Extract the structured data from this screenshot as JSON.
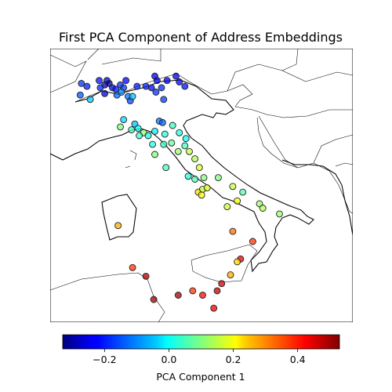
{
  "chart_data": {
    "type": "scatter-map",
    "title": "First PCA Component of Address Embeddings",
    "region": "Italy",
    "colormap": "jet",
    "colorbar": {
      "label": "PCA Component 1",
      "range": [
        -0.33,
        0.53
      ],
      "ticks": [
        -0.2,
        0.0,
        0.2,
        0.4
      ],
      "tick_labels": [
        "−0.2",
        "0.0",
        "0.2",
        "0.4"
      ],
      "orientation": "horizontal",
      "placement": "bottom"
    },
    "points": [
      {
        "x": 7.2,
        "y": 45.6,
        "v": -0.18
      },
      {
        "x": 7.45,
        "y": 45.5,
        "v": -0.2
      },
      {
        "x": 7.15,
        "y": 45.2,
        "v": -0.15
      },
      {
        "x": 7.6,
        "y": 45.05,
        "v": -0.05
      },
      {
        "x": 8.0,
        "y": 45.7,
        "v": -0.21
      },
      {
        "x": 8.25,
        "y": 45.55,
        "v": -0.28
      },
      {
        "x": 8.35,
        "y": 45.7,
        "v": -0.24
      },
      {
        "x": 8.45,
        "y": 45.6,
        "v": -0.31
      },
      {
        "x": 8.6,
        "y": 45.45,
        "v": -0.22
      },
      {
        "x": 8.05,
        "y": 45.45,
        "v": -0.19
      },
      {
        "x": 8.25,
        "y": 45.25,
        "v": -0.25
      },
      {
        "x": 8.75,
        "y": 45.4,
        "v": -0.2
      },
      {
        "x": 8.95,
        "y": 45.55,
        "v": -0.18
      },
      {
        "x": 8.8,
        "y": 45.2,
        "v": -0.14
      },
      {
        "x": 9.2,
        "y": 45.7,
        "v": -0.22
      },
      {
        "x": 9.1,
        "y": 45.45,
        "v": -0.17
      },
      {
        "x": 9.0,
        "y": 45.3,
        "v": -0.1
      },
      {
        "x": 9.3,
        "y": 45.15,
        "v": -0.12
      },
      {
        "x": 9.4,
        "y": 45.0,
        "v": -0.16
      },
      {
        "x": 9.5,
        "y": 45.15,
        "v": -0.06
      },
      {
        "x": 9.7,
        "y": 45.5,
        "v": -0.2
      },
      {
        "x": 10.1,
        "y": 45.5,
        "v": -0.2
      },
      {
        "x": 10.35,
        "y": 45.45,
        "v": -0.22
      },
      {
        "x": 10.5,
        "y": 45.85,
        "v": -0.25
      },
      {
        "x": 10.6,
        "y": 45.7,
        "v": -0.24
      },
      {
        "x": 10.55,
        "y": 45.3,
        "v": -0.18
      },
      {
        "x": 10.8,
        "y": 45.45,
        "v": -0.19
      },
      {
        "x": 11.05,
        "y": 45.7,
        "v": -0.23
      },
      {
        "x": 11.45,
        "y": 45.85,
        "v": -0.24
      },
      {
        "x": 11.6,
        "y": 45.65,
        "v": -0.23
      },
      {
        "x": 11.85,
        "y": 45.5,
        "v": -0.21
      },
      {
        "x": 10.9,
        "y": 45.05,
        "v": -0.17
      },
      {
        "x": 8.95,
        "y": 44.1,
        "v": 0.1
      },
      {
        "x": 9.1,
        "y": 44.35,
        "v": -0.04
      },
      {
        "x": 9.45,
        "y": 44.0,
        "v": 0.05
      },
      {
        "x": 9.6,
        "y": 44.2,
        "v": -0.06
      },
      {
        "x": 9.75,
        "y": 44.05,
        "v": 0.0
      },
      {
        "x": 10.0,
        "y": 43.9,
        "v": 0.12
      },
      {
        "x": 9.8,
        "y": 43.8,
        "v": 0.04
      },
      {
        "x": 10.2,
        "y": 43.8,
        "v": 0.01
      },
      {
        "x": 10.5,
        "y": 43.95,
        "v": -0.02
      },
      {
        "x": 10.7,
        "y": 44.3,
        "v": -0.12
      },
      {
        "x": 10.85,
        "y": 44.25,
        "v": -0.14
      },
      {
        "x": 10.95,
        "y": 43.85,
        "v": 0.02
      },
      {
        "x": 11.3,
        "y": 44.15,
        "v": 0.04
      },
      {
        "x": 11.6,
        "y": 43.9,
        "v": 0.02
      },
      {
        "x": 11.9,
        "y": 43.7,
        "v": 0.0
      },
      {
        "x": 10.4,
        "y": 43.5,
        "v": 0.02
      },
      {
        "x": 10.9,
        "y": 43.5,
        "v": 0.04
      },
      {
        "x": 11.25,
        "y": 43.55,
        "v": 0.08
      },
      {
        "x": 11.85,
        "y": 43.45,
        "v": 0.05
      },
      {
        "x": 10.5,
        "y": 43.15,
        "v": 0.1
      },
      {
        "x": 11.55,
        "y": 43.25,
        "v": 0.12
      },
      {
        "x": 12.05,
        "y": 43.25,
        "v": 0.16
      },
      {
        "x": 12.3,
        "y": 43.0,
        "v": 0.14
      },
      {
        "x": 11.0,
        "y": 42.7,
        "v": 0.05
      },
      {
        "x": 12.0,
        "y": 42.4,
        "v": 0.02
      },
      {
        "x": 12.5,
        "y": 42.7,
        "v": 0.18
      },
      {
        "x": 12.7,
        "y": 42.35,
        "v": 0.1
      },
      {
        "x": 12.3,
        "y": 42.3,
        "v": 0.06
      },
      {
        "x": 12.45,
        "y": 41.85,
        "v": 0.24
      },
      {
        "x": 12.65,
        "y": 41.95,
        "v": 0.16
      },
      {
        "x": 12.85,
        "y": 42.0,
        "v": 0.18
      },
      {
        "x": 12.6,
        "y": 41.75,
        "v": 0.2
      },
      {
        "x": 13.35,
        "y": 42.35,
        "v": 0.1
      },
      {
        "x": 14.0,
        "y": 42.05,
        "v": 0.16
      },
      {
        "x": 14.45,
        "y": 41.85,
        "v": 0.06
      },
      {
        "x": 14.2,
        "y": 41.55,
        "v": 0.2
      },
      {
        "x": 13.75,
        "y": 41.35,
        "v": 0.16
      },
      {
        "x": 15.2,
        "y": 41.45,
        "v": 0.12
      },
      {
        "x": 15.35,
        "y": 41.3,
        "v": 0.14
      },
      {
        "x": 16.1,
        "y": 41.1,
        "v": 0.12
      },
      {
        "x": 14.0,
        "y": 40.5,
        "v": 0.33
      },
      {
        "x": 14.9,
        "y": 40.15,
        "v": 0.38
      },
      {
        "x": 14.35,
        "y": 39.55,
        "v": 0.44
      },
      {
        "x": 14.2,
        "y": 39.45,
        "v": 0.24
      },
      {
        "x": 13.9,
        "y": 39.0,
        "v": 0.28
      },
      {
        "x": 13.5,
        "y": 38.7,
        "v": 0.46
      },
      {
        "x": 13.3,
        "y": 38.45,
        "v": 0.48
      },
      {
        "x": 12.65,
        "y": 38.3,
        "v": 0.42
      },
      {
        "x": 12.2,
        "y": 38.45,
        "v": 0.38
      },
      {
        "x": 11.55,
        "y": 38.3,
        "v": 0.5
      },
      {
        "x": 10.45,
        "y": 38.15,
        "v": 0.5
      },
      {
        "x": 10.1,
        "y": 38.95,
        "v": 0.49
      },
      {
        "x": 13.15,
        "y": 37.85,
        "v": 0.44
      },
      {
        "x": 8.85,
        "y": 40.7,
        "v": 0.28
      },
      {
        "x": 9.5,
        "y": 39.25,
        "v": 0.38
      }
    ]
  }
}
